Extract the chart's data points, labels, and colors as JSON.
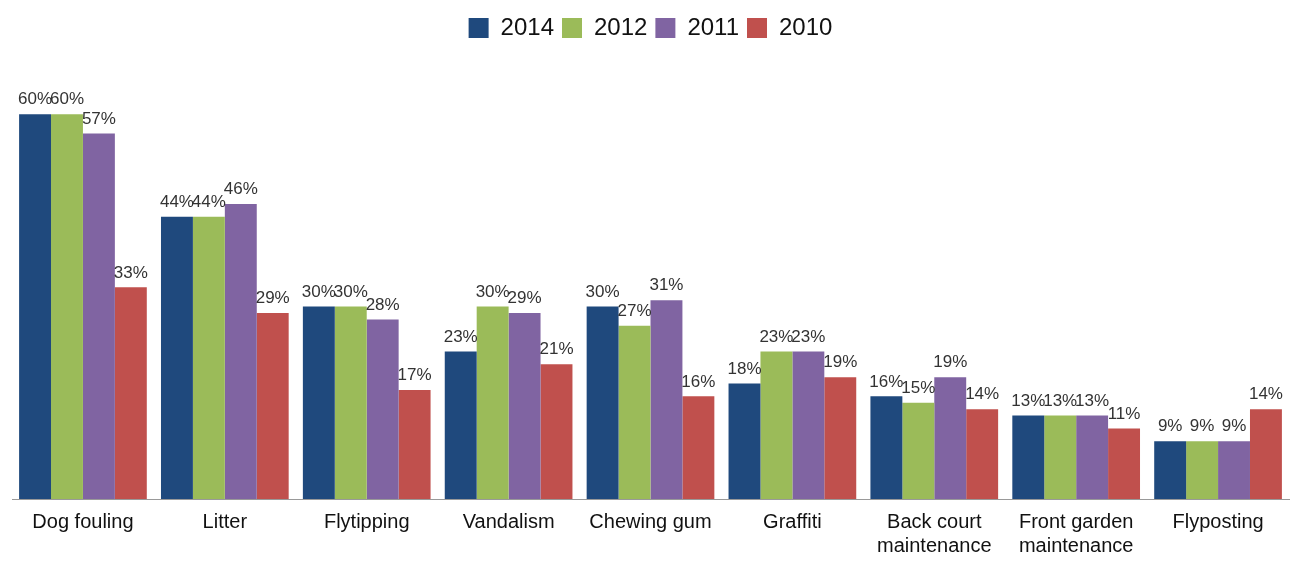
{
  "chart_data": {
    "type": "bar",
    "categories": [
      "Dog fouling",
      "Litter",
      "Flytipping",
      "Vandalism",
      "Chewing gum",
      "Graffiti",
      "Back court maintenance",
      "Front garden maintenance",
      "Flyposting"
    ],
    "series": [
      {
        "name": "2014",
        "color": "#1f497d",
        "values": [
          60,
          44,
          30,
          23,
          30,
          18,
          16,
          13,
          9
        ],
        "value_labels": [
          "60%",
          "44%",
          "30%",
          "23%",
          "30%",
          "18%",
          "16%",
          "13%",
          "9%"
        ]
      },
      {
        "name": "2012",
        "color": "#9bbb59",
        "values": [
          60,
          44,
          30,
          30,
          27,
          23,
          15,
          13,
          9
        ],
        "value_labels": [
          "60%",
          "44%",
          "30%",
          "30%",
          "27%",
          "23%",
          "15%",
          "13%",
          "9%"
        ]
      },
      {
        "name": "2011",
        "color": "#8064a2",
        "values": [
          57,
          46,
          28,
          29,
          31,
          23,
          19,
          13,
          9
        ],
        "value_labels": [
          "57%",
          "46%",
          "28%",
          "29%",
          "31%",
          "23%",
          "19%",
          "13%",
          "9%"
        ]
      },
      {
        "name": "2010",
        "color": "#c0504d",
        "values": [
          33,
          29,
          17,
          21,
          16,
          19,
          14,
          11,
          14
        ],
        "value_labels": [
          "33%",
          "29%",
          "17%",
          "21%",
          "16%",
          "19%",
          "14%",
          "11%",
          "14%"
        ]
      }
    ],
    "legend": "top",
    "grid": false,
    "tick_labels": "x"
  }
}
